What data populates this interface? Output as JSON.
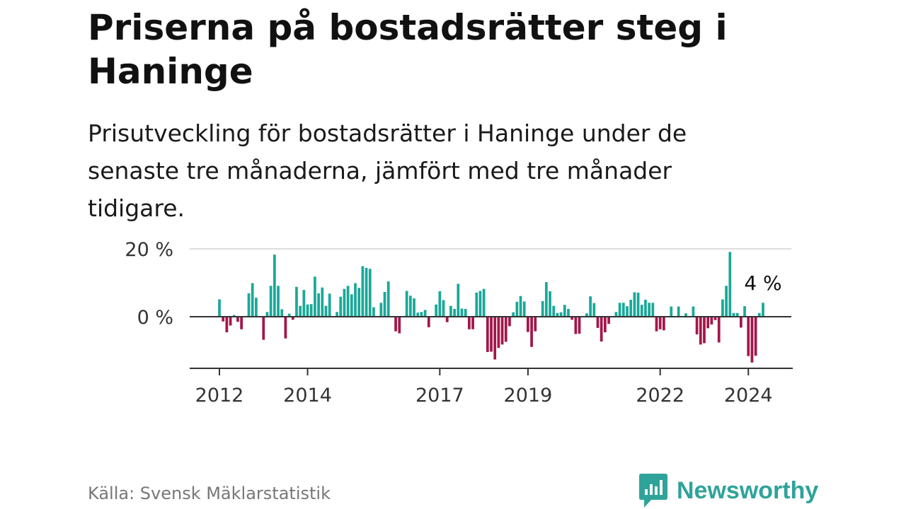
{
  "title": "Priserna på bostadsrätter steg i Haninge",
  "subtitle": "Prisutveckling för bostadsrätter i Haninge under de senaste tre månaderna, jämfört med tre månader tidigare.",
  "source": "Källa: Svensk Mäklarstatistik",
  "brand": "Newsworthy",
  "colors": {
    "positive": "#1aa898",
    "negative": "#a3164a",
    "brand": "#2fa39a"
  },
  "chart_data": {
    "type": "bar",
    "title": "Priserna på bostadsrätter steg i Haninge",
    "ylabel": "",
    "xlabel": "",
    "ylim": [
      -15,
      20
    ],
    "y_ticks": [
      {
        "value": 0,
        "label": "0 %"
      },
      {
        "value": 20,
        "label": "20 %"
      }
    ],
    "x_ticks": [
      {
        "label": "2012",
        "index": 0
      },
      {
        "label": "2014",
        "index": 24
      },
      {
        "label": "2017",
        "index": 60
      },
      {
        "label": "2019",
        "index": 84
      },
      {
        "label": "2022",
        "index": 120
      },
      {
        "label": "2024",
        "index": 144
      }
    ],
    "start": "2012-01",
    "annotation": {
      "label": "4 %",
      "index": 144
    },
    "values": [
      5.1,
      -1.4,
      -4.6,
      -2.6,
      0.5,
      -1.5,
      -3.7,
      0,
      6.9,
      9.9,
      5.6,
      0,
      -6.8,
      1.4,
      9.1,
      18.3,
      9.1,
      2.2,
      -6.4,
      0.9,
      -0.9,
      8.8,
      3.2,
      7.9,
      3.6,
      3.7,
      11.8,
      6.9,
      8.6,
      3.2,
      6.8,
      0,
      1.4,
      5.9,
      8.2,
      9.1,
      6.6,
      9.9,
      8.5,
      14.9,
      14.4,
      14.1,
      2.8,
      0,
      4.1,
      7.3,
      10.4,
      0,
      -4.3,
      -4.9,
      0,
      7.6,
      6.2,
      5.4,
      1.2,
      1.4,
      2.0,
      -3.1,
      0,
      3.6,
      7.5,
      4.9,
      -1.6,
      3.2,
      2.3,
      9.7,
      2.4,
      2.3,
      -3.7,
      -3.7,
      7.1,
      7.6,
      8.2,
      -10.4,
      -10.3,
      -12.6,
      -9.2,
      -8.2,
      -7.4,
      -2.8,
      1.3,
      4.4,
      6.1,
      4.5,
      -4.5,
      -8.9,
      -4.3,
      0,
      4.6,
      10.2,
      7.5,
      3.2,
      1.1,
      1.3,
      3.5,
      2.3,
      -0.9,
      -5.1,
      -5.0,
      0,
      1.0,
      6.0,
      4.0,
      -3.3,
      -7.3,
      -4.6,
      -2.1,
      0,
      1.4,
      4.1,
      4.1,
      3.1,
      5.0,
      7.2,
      7.1,
      3.5,
      5.0,
      4.1,
      4.1,
      -4.3,
      -3.7,
      -4.0,
      0,
      3.0,
      0,
      3.0,
      0,
      1.0,
      0,
      3.0,
      -5.2,
      -8.2,
      -7.8,
      -3.4,
      -2.3,
      -1.0,
      -7.6,
      5.1,
      9.1,
      19.1,
      1.1,
      1.1,
      -3.2,
      3.1,
      -11.6,
      -13.5,
      -11.5,
      1.1,
      4.1
    ]
  }
}
